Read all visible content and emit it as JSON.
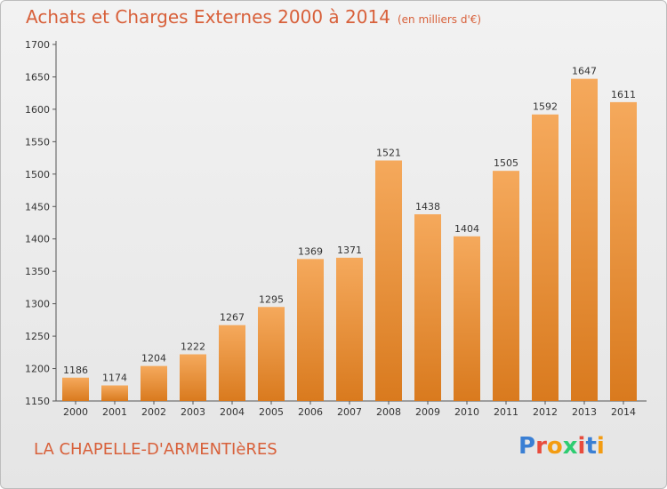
{
  "header": {
    "title": "Achats et Charges Externes 2000 à 2014",
    "unit": "(en milliers d'€)"
  },
  "footer": {
    "town": "LA CHAPELLE-D'ARMENTIèRES",
    "brand": "Proxiti",
    "brand_colors": [
      "#3a7fd4",
      "#e84c3d",
      "#f39c12",
      "#2ecc71",
      "#e84c3d",
      "#3a7fd4",
      "#f39c12"
    ]
  },
  "colors": {
    "bar_top": "#f5a95c",
    "bar_bottom": "#d97a1e",
    "title": "#d8603a",
    "axis": "#555555"
  },
  "chart_data": {
    "type": "bar",
    "categories": [
      "2000",
      "2001",
      "2002",
      "2003",
      "2004",
      "2005",
      "2006",
      "2007",
      "2008",
      "2009",
      "2010",
      "2011",
      "2012",
      "2013",
      "2014"
    ],
    "values": [
      1186,
      1174,
      1204,
      1222,
      1267,
      1295,
      1369,
      1371,
      1521,
      1438,
      1404,
      1505,
      1592,
      1647,
      1611
    ],
    "ylim": [
      1150,
      1700
    ],
    "yticks": [
      1150,
      1200,
      1250,
      1300,
      1350,
      1400,
      1450,
      1500,
      1550,
      1600,
      1650,
      1700
    ],
    "grid": false,
    "xlabel": "",
    "ylabel": ""
  }
}
